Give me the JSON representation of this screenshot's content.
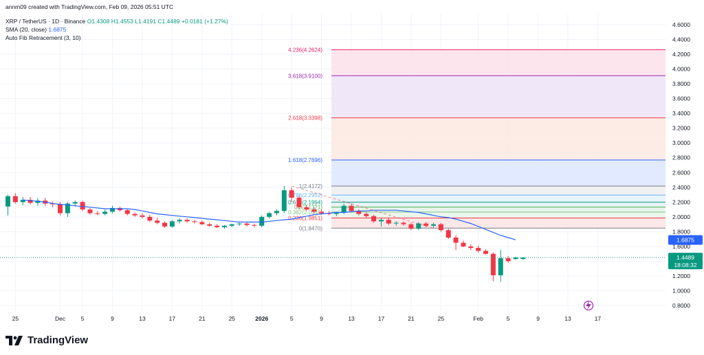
{
  "header": {
    "credit": "annm09 created with TradingView.com, Feb 09, 2026 05:51 UTC",
    "symbol": "XRP / TetherUS · 1D · Binance",
    "ohlc": {
      "o": "O1.4308",
      "h": "H1.4553",
      "l": "L1.4191",
      "c": "C1.4489",
      "change": "+0.0181 (+1.27%)"
    },
    "sma_label": "SMA (20, close)",
    "sma_value": "1.6875",
    "fib_label": "Auto Fib Retracement (3, 10)"
  },
  "brand": {
    "name": "TradingView",
    "icon": "tradingview-logo-icon"
  },
  "colors": {
    "up": "#089981",
    "down": "#f23645",
    "sma": "#2962ff",
    "grid": "#f0f3fa"
  },
  "chart_data": {
    "type": "candlestick",
    "y_axis": {
      "range": [
        0.7,
        4.7
      ],
      "ticks": [
        "0.8000",
        "1.0000",
        "1.2000",
        "1.4000",
        "1.6000",
        "1.8000",
        "2.0000",
        "2.2000",
        "2.4000",
        "2.6000",
        "2.8000",
        "3.0000",
        "3.2000",
        "3.4000",
        "3.6000",
        "3.8000",
        "4.0000",
        "4.2000",
        "4.4000",
        "4.6000"
      ]
    },
    "x_axis": {
      "ticks": [
        "25",
        "Dec",
        "5",
        "9",
        "13",
        "17",
        "21",
        "25",
        "2026",
        "5",
        "9",
        "13",
        "17",
        "21",
        "25",
        "Feb",
        "5",
        "9",
        "13",
        "17"
      ],
      "bold_ticks": [
        "2026"
      ]
    },
    "price_label": {
      "value": "1.4489",
      "countdown": "18:08:32"
    },
    "sma_label": {
      "value": "1.6875"
    },
    "candles": [
      [
        2.14,
        2.3,
        2.02,
        2.28
      ],
      [
        2.28,
        2.32,
        2.18,
        2.2
      ],
      [
        2.2,
        2.27,
        2.16,
        2.23
      ],
      [
        2.23,
        2.27,
        2.17,
        2.19
      ],
      [
        2.19,
        2.25,
        2.15,
        2.22
      ],
      [
        2.22,
        2.26,
        2.15,
        2.18
      ],
      [
        2.18,
        2.21,
        2.13,
        2.17
      ],
      [
        2.17,
        2.2,
        2.02,
        2.05
      ],
      [
        2.05,
        2.2,
        2.0,
        2.18
      ],
      [
        2.18,
        2.22,
        2.14,
        2.2
      ],
      [
        2.2,
        2.22,
        2.08,
        2.1
      ],
      [
        2.1,
        2.12,
        2.03,
        2.05
      ],
      [
        2.05,
        2.08,
        2.02,
        2.04
      ],
      [
        2.04,
        2.1,
        2.02,
        2.07
      ],
      [
        2.07,
        2.15,
        2.05,
        2.12
      ],
      [
        2.12,
        2.14,
        2.07,
        2.09
      ],
      [
        2.09,
        2.11,
        2.02,
        2.04
      ],
      [
        2.04,
        2.06,
        2.0,
        2.02
      ],
      [
        2.02,
        2.05,
        1.98,
        2.0
      ],
      [
        2.0,
        2.03,
        1.93,
        1.95
      ],
      [
        1.95,
        1.99,
        1.9,
        1.92
      ],
      [
        1.92,
        1.94,
        1.85,
        1.87
      ],
      [
        1.87,
        1.96,
        1.85,
        1.94
      ],
      [
        1.94,
        1.98,
        1.91,
        1.96
      ],
      [
        1.96,
        1.98,
        1.92,
        1.94
      ],
      [
        1.94,
        1.96,
        1.91,
        1.93
      ],
      [
        1.93,
        1.95,
        1.89,
        1.9
      ],
      [
        1.9,
        1.92,
        1.87,
        1.88
      ],
      [
        1.88,
        1.9,
        1.85,
        1.86
      ],
      [
        1.86,
        1.89,
        1.84,
        1.88
      ],
      [
        1.88,
        1.91,
        1.86,
        1.9
      ],
      [
        1.9,
        1.92,
        1.88,
        1.91
      ],
      [
        1.91,
        1.93,
        1.87,
        1.89
      ],
      [
        1.89,
        1.91,
        1.86,
        1.88
      ],
      [
        1.88,
        2.02,
        1.86,
        2.0
      ],
      [
        2.0,
        2.07,
        1.98,
        2.05
      ],
      [
        2.05,
        2.1,
        2.02,
        2.08
      ],
      [
        2.08,
        2.42,
        2.05,
        2.36
      ],
      [
        2.36,
        2.4,
        2.2,
        2.26
      ],
      [
        2.26,
        2.28,
        2.1,
        2.13
      ],
      [
        2.13,
        2.16,
        2.08,
        2.1
      ],
      [
        2.1,
        2.13,
        2.05,
        2.07
      ],
      [
        2.07,
        2.1,
        2.03,
        2.05
      ],
      [
        2.05,
        2.08,
        2.02,
        2.04
      ],
      [
        2.04,
        2.07,
        2.01,
        2.06
      ],
      [
        2.06,
        2.18,
        2.04,
        2.15
      ],
      [
        2.15,
        2.18,
        2.06,
        2.08
      ],
      [
        2.08,
        2.1,
        2.02,
        2.04
      ],
      [
        2.04,
        2.06,
        1.99,
        2.01
      ],
      [
        2.01,
        2.03,
        1.92,
        1.94
      ],
      [
        1.94,
        1.98,
        1.87,
        1.96
      ],
      [
        1.96,
        1.98,
        1.89,
        1.91
      ],
      [
        1.91,
        1.94,
        1.88,
        1.92
      ],
      [
        1.92,
        1.94,
        1.88,
        1.9
      ],
      [
        1.9,
        1.92,
        1.82,
        1.84
      ],
      [
        1.84,
        1.93,
        1.82,
        1.91
      ],
      [
        1.91,
        1.93,
        1.86,
        1.88
      ],
      [
        1.88,
        1.92,
        1.85,
        1.9
      ],
      [
        1.9,
        1.92,
        1.8,
        1.82
      ],
      [
        1.82,
        1.84,
        1.7,
        1.72
      ],
      [
        1.72,
        1.75,
        1.55,
        1.65
      ],
      [
        1.65,
        1.68,
        1.59,
        1.6
      ],
      [
        1.6,
        1.63,
        1.55,
        1.58
      ],
      [
        1.58,
        1.61,
        1.52,
        1.54
      ],
      [
        1.54,
        1.56,
        1.49,
        1.5
      ],
      [
        1.5,
        1.52,
        1.13,
        1.21
      ],
      [
        1.21,
        1.55,
        1.12,
        1.44
      ],
      [
        1.44,
        1.47,
        1.38,
        1.4
      ],
      [
        1.43,
        1.46,
        1.42,
        1.45
      ],
      [
        1.43,
        1.455,
        1.419,
        1.449
      ]
    ],
    "sma": [
      2.23,
      2.22,
      2.21,
      2.2,
      2.18,
      2.17,
      2.16,
      2.15,
      2.14,
      2.13,
      2.12,
      2.11,
      2.11,
      2.11,
      2.11,
      2.1,
      2.08,
      2.06,
      2.04,
      2.03,
      2.02,
      2.01,
      2.0,
      1.99,
      1.98,
      1.97,
      1.96,
      1.95,
      1.94,
      1.93,
      1.93,
      1.93,
      1.93,
      1.94,
      1.95,
      1.96,
      1.97,
      1.99,
      2.01,
      2.03,
      2.04,
      2.05,
      2.06,
      2.06,
      2.07,
      2.08,
      2.08,
      2.09,
      2.09,
      2.09,
      2.09,
      2.08,
      2.07,
      2.06,
      2.04,
      2.02,
      2.0,
      1.99,
      1.97,
      1.94,
      1.91,
      1.87,
      1.83,
      1.79,
      1.75,
      1.72,
      1.69
    ],
    "fib_levels": [
      {
        "label": "0(1.8470)",
        "price": 1.847,
        "color": "#787b86"
      },
      {
        "label": "0.236(1.9851)",
        "price": 1.9851,
        "color": "#f23645"
      },
      {
        "label": "0.382(2.0646)",
        "price": 2.0646,
        "color": "#81c784"
      },
      {
        "label": "0.5(2.1321)",
        "price": 2.1321,
        "color": "#4caf50"
      },
      {
        "label": "0.618(2.1994)",
        "price": 2.1994,
        "color": "#089981"
      },
      {
        "label": "0.786(2.2952)",
        "price": 2.2952,
        "color": "#64b5f6"
      },
      {
        "label": "1(2.4172)",
        "price": 2.4172,
        "color": "#787b86"
      },
      {
        "label": "1.618(2.7696)",
        "price": 2.7696,
        "color": "#2962ff"
      },
      {
        "label": "2.618(3.3398)",
        "price": 3.3398,
        "color": "#f23645"
      },
      {
        "label": "3.618(3.9100)",
        "price": 3.91,
        "color": "#9c27b0"
      },
      {
        "label": "4.236(4.2624)",
        "price": 4.2624,
        "color": "#e91e63"
      }
    ],
    "fib_fills": [
      "#fce4e4",
      "#e8f5e9",
      "#e3f2e9",
      "#e0f2f1",
      "#e3f2fd",
      "#eeeeee",
      "#dde6ff",
      "#fde8e2",
      "#ede4f7",
      "#fde0ea"
    ]
  }
}
